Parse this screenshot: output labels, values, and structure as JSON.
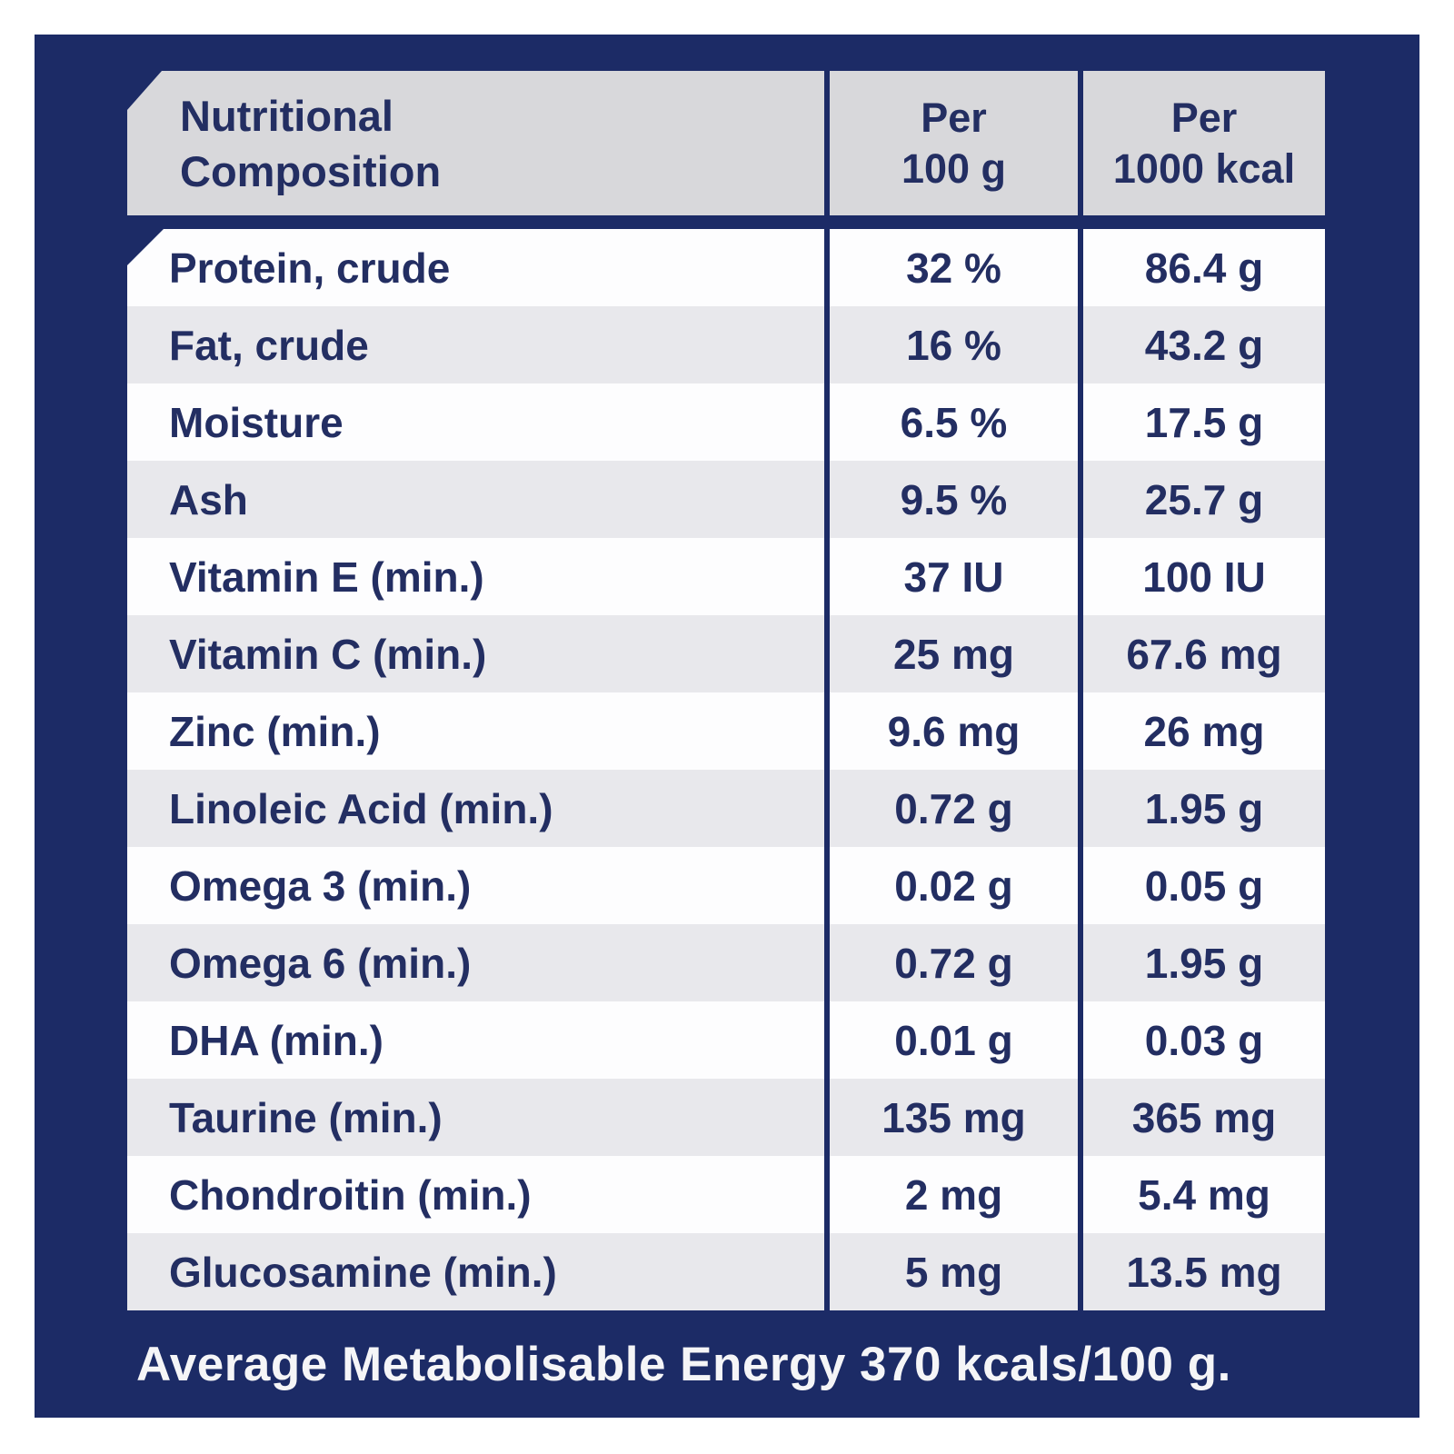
{
  "colors": {
    "panel_navy": "#1c2b66",
    "header_gray": "#d8d8db",
    "row_white": "#fdfdfe",
    "row_gray": "#e8e8ec",
    "text_navy": "#232e62",
    "footer_text": "#f5f5f7"
  },
  "table": {
    "title": "Nutritional Composition",
    "col_headers": [
      "Per\n100 g",
      "Per\n1000 kcal"
    ],
    "rows": [
      {
        "label": "Protein, crude",
        "per_100g": "32 %",
        "per_1000kcal": "86.4 g"
      },
      {
        "label": "Fat, crude",
        "per_100g": "16 %",
        "per_1000kcal": "43.2 g"
      },
      {
        "label": "Moisture",
        "per_100g": "6.5 %",
        "per_1000kcal": "17.5 g"
      },
      {
        "label": "Ash",
        "per_100g": "9.5 %",
        "per_1000kcal": "25.7 g"
      },
      {
        "label": "Vitamin E (min.)",
        "per_100g": "37 IU",
        "per_1000kcal": "100 IU"
      },
      {
        "label": "Vitamin C (min.)",
        "per_100g": "25 mg",
        "per_1000kcal": "67.6 mg"
      },
      {
        "label": "Zinc (min.)",
        "per_100g": "9.6 mg",
        "per_1000kcal": "26 mg"
      },
      {
        "label": "Linoleic Acid (min.)",
        "per_100g": "0.72 g",
        "per_1000kcal": "1.95 g"
      },
      {
        "label": "Omega 3 (min.)",
        "per_100g": "0.02 g",
        "per_1000kcal": "0.05 g"
      },
      {
        "label": "Omega 6 (min.)",
        "per_100g": "0.72 g",
        "per_1000kcal": "1.95 g"
      },
      {
        "label": "DHA (min.)",
        "per_100g": "0.01 g",
        "per_1000kcal": "0.03 g"
      },
      {
        "label": "Taurine (min.)",
        "per_100g": "135 mg",
        "per_1000kcal": "365 mg"
      },
      {
        "label": "Chondroitin (min.)",
        "per_100g": "2 mg",
        "per_1000kcal": "5.4 mg"
      },
      {
        "label": "Glucosamine (min.)",
        "per_100g": "5 mg",
        "per_1000kcal": "13.5 mg"
      }
    ],
    "footer": "Average Metabolisable Energy 370 kcals/100 g."
  }
}
